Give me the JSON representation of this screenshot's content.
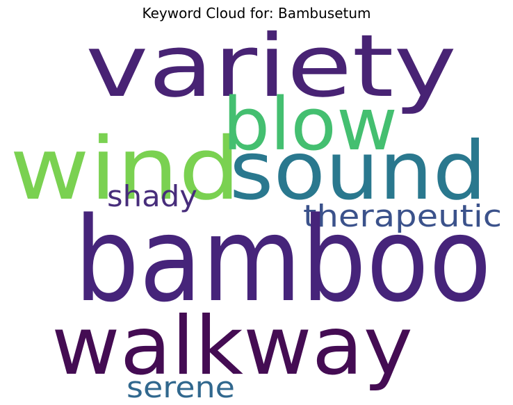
{
  "title": "Keyword Cloud for: Bambusetum",
  "words": [
    {
      "text": "variety",
      "color": "#482374"
    },
    {
      "text": "wind",
      "color": "#7ad151"
    },
    {
      "text": "blow",
      "color": "#44bf70"
    },
    {
      "text": "sound",
      "color": "#2a788e"
    },
    {
      "text": "shady",
      "color": "#472d7b"
    },
    {
      "text": "therapeutic",
      "color": "#3b528b"
    },
    {
      "text": "bamboo",
      "color": "#46247a"
    },
    {
      "text": "walkway",
      "color": "#440c53"
    },
    {
      "text": "serene",
      "color": "#31688e"
    }
  ]
}
